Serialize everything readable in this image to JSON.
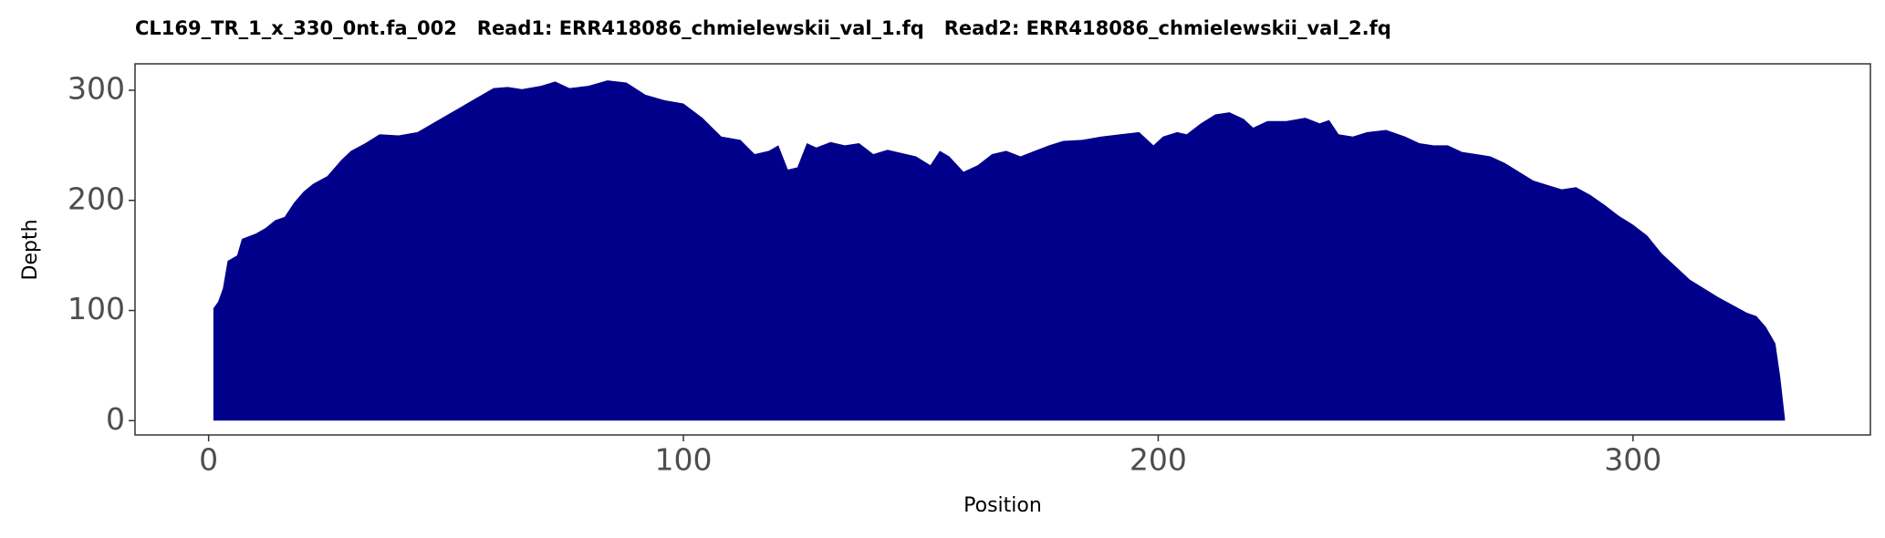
{
  "chart_data": {
    "type": "area",
    "title": "CL169_TR_1_x_330_0nt.fa_002   Read1: ERR418086_chmielewskii_val_1.fq   Read2: ERR418086_chmielewskii_val_2.fq",
    "x_label": "Position",
    "y_label": "Depth",
    "color": "#00008b",
    "x": [
      1,
      2,
      3,
      4,
      6,
      7,
      10,
      12,
      14,
      16,
      18,
      20,
      22,
      25,
      28,
      30,
      33,
      36,
      40,
      44,
      48,
      52,
      56,
      60,
      63,
      66,
      70,
      73,
      76,
      80,
      84,
      88,
      92,
      96,
      100,
      104,
      108,
      112,
      115,
      118,
      120,
      122,
      124,
      126,
      128,
      131,
      134,
      137,
      140,
      143,
      146,
      149,
      152,
      154,
      156,
      159,
      162,
      165,
      168,
      171,
      174,
      177,
      180,
      184,
      188,
      192,
      196,
      199,
      201,
      204,
      206,
      209,
      212,
      215,
      218,
      220,
      223,
      227,
      231,
      234,
      236,
      238,
      241,
      244,
      248,
      252,
      255,
      258,
      261,
      264,
      267,
      270,
      273,
      276,
      279,
      282,
      285,
      288,
      291,
      294,
      297,
      300,
      303,
      306,
      309,
      312,
      315,
      318,
      321,
      324,
      326,
      328,
      330,
      331,
      332
    ],
    "values": [
      102,
      108,
      120,
      145,
      150,
      165,
      170,
      175,
      182,
      185,
      198,
      208,
      215,
      222,
      237,
      245,
      252,
      260,
      259,
      262,
      272,
      282,
      292,
      302,
      303,
      301,
      304,
      308,
      302,
      304,
      309,
      307,
      296,
      291,
      288,
      275,
      258,
      255,
      242,
      245,
      250,
      228,
      230,
      252,
      248,
      253,
      250,
      252,
      242,
      246,
      243,
      240,
      232,
      245,
      240,
      226,
      232,
      242,
      245,
      240,
      245,
      250,
      254,
      255,
      258,
      260,
      262,
      250,
      258,
      262,
      260,
      270,
      278,
      280,
      274,
      266,
      272,
      272,
      275,
      270,
      273,
      260,
      258,
      262,
      264,
      258,
      252,
      250,
      250,
      244,
      242,
      240,
      234,
      226,
      218,
      214,
      210,
      212,
      205,
      196,
      186,
      178,
      168,
      152,
      140,
      128,
      120,
      112,
      105,
      98,
      95,
      85,
      70,
      40,
      2
    ],
    "xlim": [
      -15.5,
      350
    ],
    "ylim": [
      -13,
      324
    ],
    "xticks": [
      0,
      100,
      200,
      300
    ],
    "yticks": [
      0,
      100,
      200,
      300
    ]
  }
}
